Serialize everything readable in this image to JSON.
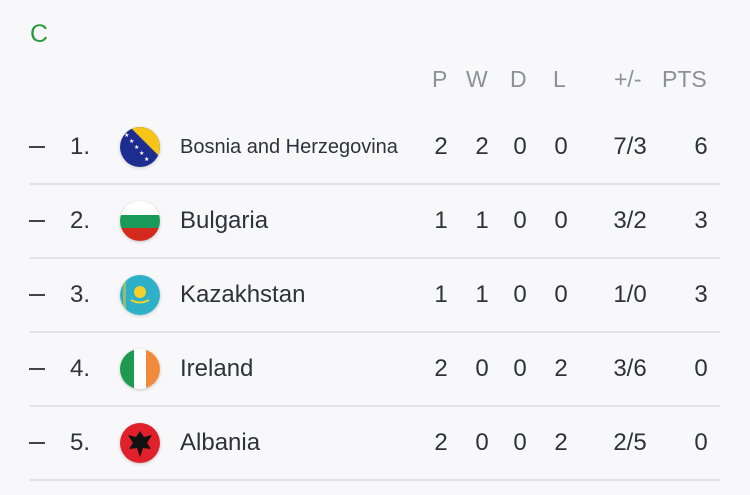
{
  "group": "C",
  "headers": {
    "p": "P",
    "w": "W",
    "d": "D",
    "l": "L",
    "gd": "+/-",
    "pts": "PTS"
  },
  "rows": [
    {
      "trend": "steady",
      "rank": "1.",
      "team": "Bosnia and Herzegovina",
      "flag": "bosnia-flag",
      "p": "2",
      "w": "2",
      "d": "0",
      "l": "0",
      "goals": "7/3",
      "pts": "6"
    },
    {
      "trend": "steady",
      "rank": "2.",
      "team": "Bulgaria",
      "flag": "bulgaria-flag",
      "p": "1",
      "w": "1",
      "d": "0",
      "l": "0",
      "goals": "3/2",
      "pts": "3"
    },
    {
      "trend": "steady",
      "rank": "3.",
      "team": "Kazakhstan",
      "flag": "kazakhstan-flag",
      "p": "1",
      "w": "1",
      "d": "0",
      "l": "0",
      "goals": "1/0",
      "pts": "3"
    },
    {
      "trend": "steady",
      "rank": "4.",
      "team": "Ireland",
      "flag": "ireland-flag",
      "p": "2",
      "w": "0",
      "d": "0",
      "l": "2",
      "goals": "3/6",
      "pts": "0"
    },
    {
      "trend": "steady",
      "rank": "5.",
      "team": "Albania",
      "flag": "albania-flag",
      "p": "2",
      "w": "0",
      "d": "0",
      "l": "2",
      "goals": "2/5",
      "pts": "0"
    }
  ],
  "colors": {
    "group": "#2e9a3e",
    "header": "#8c9099",
    "text": "#2f3238"
  }
}
